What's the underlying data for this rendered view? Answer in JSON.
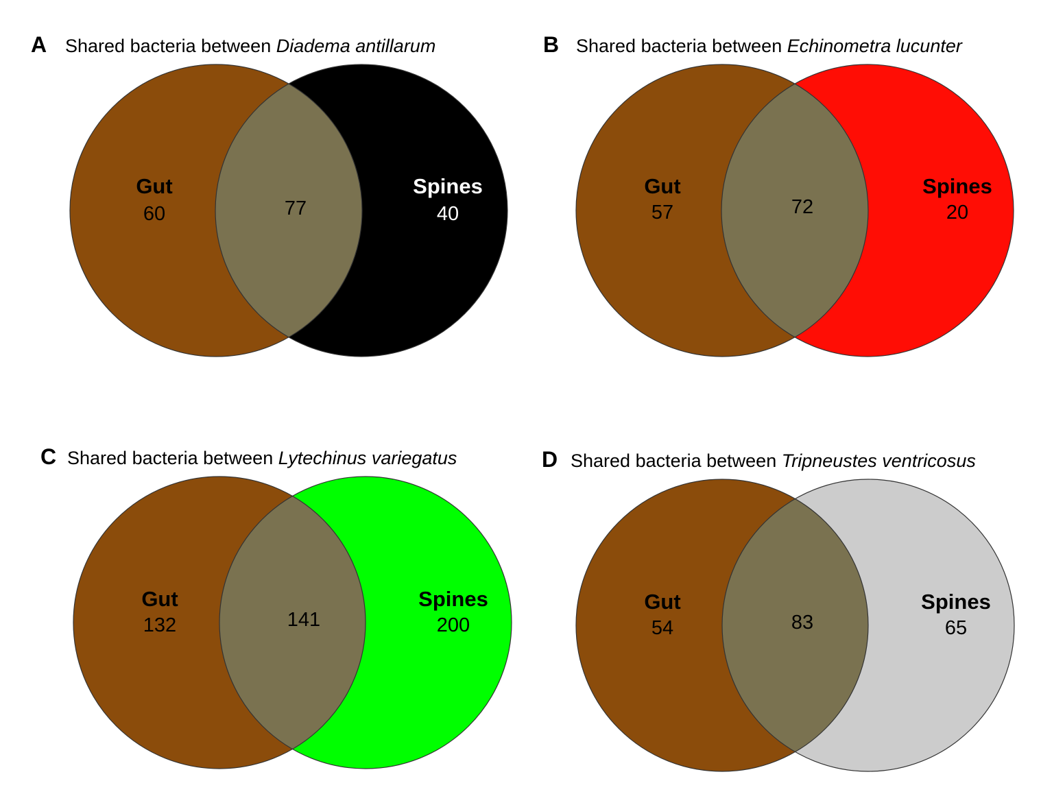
{
  "figure": {
    "panels": [
      {
        "id": "A",
        "letter": "A",
        "title_prefix": "Shared bacteria between ",
        "species": "Diadema antillarum",
        "left_set": {
          "label": "Gut",
          "count": "60",
          "color": "#8B4C0B",
          "text_color": "#000000"
        },
        "right_set": {
          "label": "Spines",
          "count": "40",
          "color": "#000000",
          "text_color": "#ffffff"
        },
        "intersection": {
          "count": "77",
          "color": "#7A7250",
          "text_color": "#000000"
        }
      },
      {
        "id": "B",
        "letter": "B",
        "title_prefix": "Shared bacteria between ",
        "species": "Echinometra lucunter",
        "left_set": {
          "label": "Gut",
          "count": "57",
          "color": "#8B4C0B",
          "text_color": "#000000"
        },
        "right_set": {
          "label": "Spines",
          "count": "20",
          "color": "#FF0D05",
          "text_color": "#000000"
        },
        "intersection": {
          "count": "72",
          "color": "#7A7250",
          "text_color": "#000000"
        }
      },
      {
        "id": "C",
        "letter": "C",
        "title_prefix": "Shared bacteria between ",
        "species": "Lytechinus variegatus",
        "left_set": {
          "label": "Gut",
          "count": "132",
          "color": "#8B4C0B",
          "text_color": "#000000"
        },
        "right_set": {
          "label": "Spines",
          "count": "200",
          "color": "#00FF00",
          "text_color": "#000000"
        },
        "intersection": {
          "count": "141",
          "color": "#7A7250",
          "text_color": "#000000"
        }
      },
      {
        "id": "D",
        "letter": "D",
        "title_prefix": "Shared bacteria between ",
        "species": "Tripneustes ventricosus",
        "left_set": {
          "label": "Gut",
          "count": "54",
          "color": "#8B4C0B",
          "text_color": "#000000"
        },
        "right_set": {
          "label": "Spines",
          "count": "65",
          "color": "#CCCCCC",
          "text_color": "#000000"
        },
        "intersection": {
          "count": "83",
          "color": "#7A7250",
          "text_color": "#000000"
        }
      }
    ]
  }
}
